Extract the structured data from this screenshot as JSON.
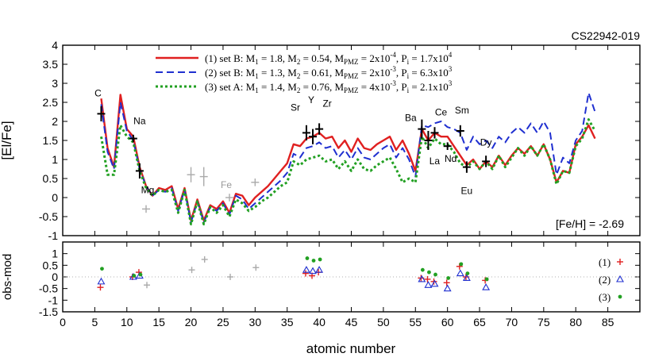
{
  "chart_data": [
    {
      "type": "line",
      "star_label": "CS22942-019",
      "metallicity_label": "[Fe/H] = -2.69",
      "ylabel": "[El/Fe]",
      "xlim": [
        0,
        90
      ],
      "ylim": [
        -1,
        4
      ],
      "yticks": [
        "-1",
        "-0.5",
        "0",
        "0.5",
        "1",
        "1.5",
        "2",
        "2.5",
        "3",
        "3.5",
        "4"
      ],
      "legend_position": "top-center",
      "series": [
        {
          "key": "m1",
          "legend": {
            "prefix": "(1) set B: M",
            "m1": "1.8",
            "m2": "0.54",
            "mpmz_base": "2x10",
            "mpmz_exp": "-4",
            "pi_base": "1.7x10",
            "pi_exp": "4"
          },
          "color": "#e02020",
          "style": "solid",
          "x": [
            6,
            7,
            8,
            9,
            10,
            11,
            12,
            13,
            14,
            15,
            16,
            17,
            18,
            19,
            20,
            21,
            22,
            23,
            24,
            25,
            26,
            27,
            28,
            29,
            30,
            31,
            32,
            33,
            34,
            35,
            36,
            37,
            38,
            39,
            40,
            41,
            42,
            43,
            44,
            45,
            46,
            47,
            48,
            49,
            50,
            51,
            52,
            53,
            54,
            55,
            56,
            57,
            58,
            59,
            60,
            61,
            62,
            63,
            64,
            65,
            66,
            67,
            68,
            69,
            70,
            71,
            72,
            73,
            74,
            75,
            76,
            77,
            78,
            79,
            80,
            81,
            82,
            83
          ],
          "y": [
            2.6,
            1.3,
            0.8,
            2.7,
            1.8,
            1.6,
            0.8,
            0.3,
            0.05,
            0.25,
            0.2,
            0.3,
            -0.3,
            0.25,
            -0.6,
            -0.05,
            -0.6,
            -0.2,
            -0.3,
            -0.1,
            -0.4,
            0.1,
            0.05,
            -0.2,
            0.0,
            0.15,
            0.3,
            0.5,
            0.7,
            0.9,
            1.4,
            1.35,
            1.55,
            1.6,
            1.7,
            1.55,
            1.6,
            1.3,
            1.5,
            1.2,
            1.55,
            1.3,
            1.25,
            1.4,
            1.5,
            1.6,
            1.25,
            1.5,
            1.15,
            0.7,
            1.8,
            1.5,
            1.7,
            1.6,
            1.6,
            1.35,
            1.1,
            0.85,
            1.0,
            0.75,
            0.95,
            0.8,
            1.1,
            0.85,
            1.1,
            1.3,
            1.15,
            1.35,
            1.1,
            1.4,
            1.0,
            0.4,
            0.7,
            0.65,
            1.4,
            1.6,
            1.9,
            1.55
          ]
        },
        {
          "key": "m2",
          "legend": {
            "prefix": "(2) set B: M",
            "m1": "1.3",
            "m2": "0.61",
            "mpmz_base": "2x10",
            "mpmz_exp": "-3",
            "pi_base": "6.3x10",
            "pi_exp": "3"
          },
          "color": "#1f2fd0",
          "style": "dashed",
          "x": [
            6,
            7,
            8,
            9,
            10,
            11,
            12,
            13,
            14,
            15,
            16,
            17,
            18,
            19,
            20,
            21,
            22,
            23,
            24,
            25,
            26,
            27,
            28,
            29,
            30,
            31,
            32,
            33,
            34,
            35,
            36,
            37,
            38,
            39,
            40,
            41,
            42,
            43,
            44,
            45,
            46,
            47,
            48,
            49,
            50,
            51,
            52,
            53,
            54,
            55,
            56,
            57,
            58,
            59,
            60,
            61,
            62,
            63,
            64,
            65,
            66,
            67,
            68,
            69,
            70,
            71,
            72,
            73,
            74,
            75,
            76,
            77,
            78,
            79,
            80,
            81,
            82,
            83
          ],
          "y": [
            2.45,
            1.2,
            0.75,
            2.5,
            1.75,
            1.5,
            0.75,
            0.3,
            0.05,
            0.2,
            0.15,
            0.25,
            -0.35,
            0.2,
            -0.65,
            -0.1,
            -0.65,
            -0.25,
            -0.35,
            -0.15,
            -0.45,
            0.05,
            -0.05,
            -0.3,
            -0.15,
            0.0,
            0.15,
            0.3,
            0.45,
            0.65,
            1.15,
            1.05,
            1.3,
            1.35,
            1.45,
            1.3,
            1.35,
            1.05,
            1.25,
            1.0,
            1.3,
            1.05,
            1.0,
            1.15,
            1.3,
            1.4,
            1.05,
            1.3,
            1.0,
            0.55,
            1.9,
            1.85,
            1.95,
            2.0,
            1.85,
            1.8,
            1.7,
            1.25,
            1.6,
            1.4,
            1.5,
            1.3,
            1.6,
            1.45,
            1.7,
            1.85,
            1.7,
            1.95,
            1.7,
            2.0,
            1.7,
            0.6,
            1.05,
            0.9,
            1.5,
            1.75,
            2.75,
            2.25
          ]
        },
        {
          "key": "m3",
          "legend": {
            "prefix": "(3) set A: M",
            "m1": "1.4",
            "m2": "0.76",
            "mpmz_base": "4x10",
            "mpmz_exp": "-3",
            "pi_base": "2.1x10",
            "pi_exp": "3"
          },
          "color": "#22a022",
          "style": "dotted",
          "x": [
            6,
            7,
            8,
            9,
            10,
            11,
            12,
            13,
            14,
            15,
            16,
            17,
            18,
            19,
            20,
            21,
            22,
            23,
            24,
            25,
            26,
            27,
            28,
            29,
            30,
            31,
            32,
            33,
            34,
            35,
            36,
            37,
            38,
            39,
            40,
            41,
            42,
            43,
            44,
            45,
            46,
            47,
            48,
            49,
            50,
            51,
            52,
            53,
            54,
            55,
            56,
            57,
            58,
            59,
            60,
            61,
            62,
            63,
            64,
            65,
            66,
            67,
            68,
            69,
            70,
            71,
            72,
            73,
            74,
            75,
            76,
            77,
            78,
            79,
            80,
            81,
            82,
            83
          ],
          "y": [
            1.6,
            0.6,
            0.6,
            1.9,
            1.6,
            1.45,
            0.7,
            0.25,
            0.05,
            0.2,
            0.15,
            0.2,
            -0.4,
            0.2,
            -0.7,
            -0.1,
            -0.7,
            -0.25,
            -0.4,
            -0.2,
            -0.5,
            -0.05,
            -0.15,
            -0.35,
            -0.25,
            -0.1,
            0.0,
            0.15,
            0.3,
            0.4,
            0.95,
            0.85,
            1.0,
            1.05,
            1.1,
            0.95,
            1.0,
            0.75,
            0.95,
            0.7,
            1.0,
            0.75,
            0.7,
            0.85,
            0.95,
            1.05,
            0.75,
            0.4,
            0.5,
            0.4,
            1.6,
            1.3,
            1.55,
            1.4,
            1.4,
            1.2,
            0.9,
            0.8,
            0.95,
            0.75,
            0.95,
            0.75,
            1.1,
            0.8,
            1.05,
            1.3,
            1.1,
            1.35,
            1.1,
            1.4,
            1.0,
            0.35,
            0.7,
            0.65,
            1.35,
            1.55,
            2.05,
            1.75
          ]
        }
      ],
      "observations": [
        {
          "label": "C",
          "x": 6,
          "y": 2.2,
          "err": 0.2,
          "color": "#000000"
        },
        {
          "label": "Na",
          "x": 11,
          "y": 1.55,
          "err": 0.1,
          "color": "#000000"
        },
        {
          "label": "Mg",
          "x": 12,
          "y": 0.7,
          "err": 0.2,
          "color": "#000000"
        },
        {
          "label": "",
          "x": 13,
          "y": -0.3,
          "err": 0.1,
          "color": "#aaaaaa"
        },
        {
          "label": "",
          "x": 20,
          "y": 0.6,
          "err": 0.2,
          "color": "#aaaaaa"
        },
        {
          "label": "",
          "x": 22,
          "y": 0.55,
          "err": 0.25,
          "color": "#aaaaaa"
        },
        {
          "label": "Fe",
          "x": 26,
          "y": 0.0,
          "err": 0.1,
          "color": "#aaaaaa"
        },
        {
          "label": "",
          "x": 30,
          "y": 0.4,
          "err": 0.1,
          "color": "#aaaaaa"
        },
        {
          "label": "Sr",
          "x": 38,
          "y": 1.7,
          "err": 0.2,
          "color": "#000000"
        },
        {
          "label": "Y",
          "x": 39,
          "y": 1.6,
          "err": 0.2,
          "color": "#000000"
        },
        {
          "label": "Zr",
          "x": 40,
          "y": 1.8,
          "err": 0.15,
          "color": "#000000"
        },
        {
          "label": "Ba",
          "x": 56,
          "y": 1.8,
          "err": 0.25,
          "color": "#000000"
        },
        {
          "label": "La",
          "x": 57,
          "y": 1.5,
          "err": 0.25,
          "color": "#000000"
        },
        {
          "label": "Ce",
          "x": 58,
          "y": 1.7,
          "err": 0.15,
          "color": "#000000"
        },
        {
          "label": "Nd",
          "x": 60,
          "y": 1.35,
          "err": 0.1,
          "color": "#000000"
        },
        {
          "label": "Sm",
          "x": 62,
          "y": 1.75,
          "err": 0.15,
          "color": "#000000"
        },
        {
          "label": "Eu",
          "x": 63,
          "y": 0.8,
          "err": 0.15,
          "color": "#000000"
        },
        {
          "label": "Dy",
          "x": 66,
          "y": 0.95,
          "err": 0.15,
          "color": "#000000"
        }
      ]
    },
    {
      "type": "scatter",
      "ylabel": "obs-mod",
      "xlabel": "atomic number",
      "xlim": [
        0,
        90
      ],
      "ylim": [
        -1.5,
        1.5
      ],
      "xticks": [
        "0",
        "5",
        "10",
        "15",
        "20",
        "25",
        "30",
        "35",
        "40",
        "45",
        "50",
        "55",
        "60",
        "65",
        "70",
        "75",
        "80",
        "85"
      ],
      "yticks": [
        "-1.5",
        "-1",
        "-0.5",
        "0",
        "0.5",
        "1"
      ],
      "grid": "dotted zero line",
      "legend_position": "right",
      "legend": [
        "(1)",
        "(2)",
        "(3)"
      ],
      "series": [
        {
          "key": "r1",
          "marker": "plus",
          "color": "#e02020",
          "x": [
            6,
            11,
            12,
            38,
            39,
            40,
            56,
            57,
            58,
            60,
            62,
            63,
            66
          ],
          "y": [
            -0.45,
            0.0,
            0.2,
            0.15,
            0.05,
            0.2,
            -0.05,
            -0.1,
            -0.2,
            -0.25,
            0.45,
            0.0,
            -0.15
          ]
        },
        {
          "key": "r2",
          "marker": "triangle",
          "color": "#1f2fd0",
          "x": [
            6,
            11,
            12,
            38,
            39,
            40,
            56,
            57,
            58,
            60,
            62,
            63,
            66
          ],
          "y": [
            -0.2,
            0.0,
            0.05,
            0.3,
            0.25,
            0.3,
            -0.1,
            -0.35,
            -0.3,
            -0.5,
            0.15,
            -0.05,
            -0.45
          ]
        },
        {
          "key": "r3",
          "marker": "circle",
          "color": "#22a022",
          "x": [
            6,
            11,
            12,
            38,
            39,
            40,
            56,
            57,
            58,
            60,
            62,
            63,
            66
          ],
          "y": [
            0.35,
            0.05,
            0.1,
            0.8,
            0.7,
            0.75,
            0.3,
            0.2,
            0.1,
            -0.05,
            0.55,
            0.15,
            -0.1
          ]
        },
        {
          "key": "gray",
          "marker": "plus",
          "color": "#aaaaaa",
          "x": [
            13,
            20,
            22,
            26,
            30
          ],
          "y": [
            -0.35,
            0.3,
            0.75,
            0.0,
            0.4
          ]
        }
      ]
    }
  ]
}
